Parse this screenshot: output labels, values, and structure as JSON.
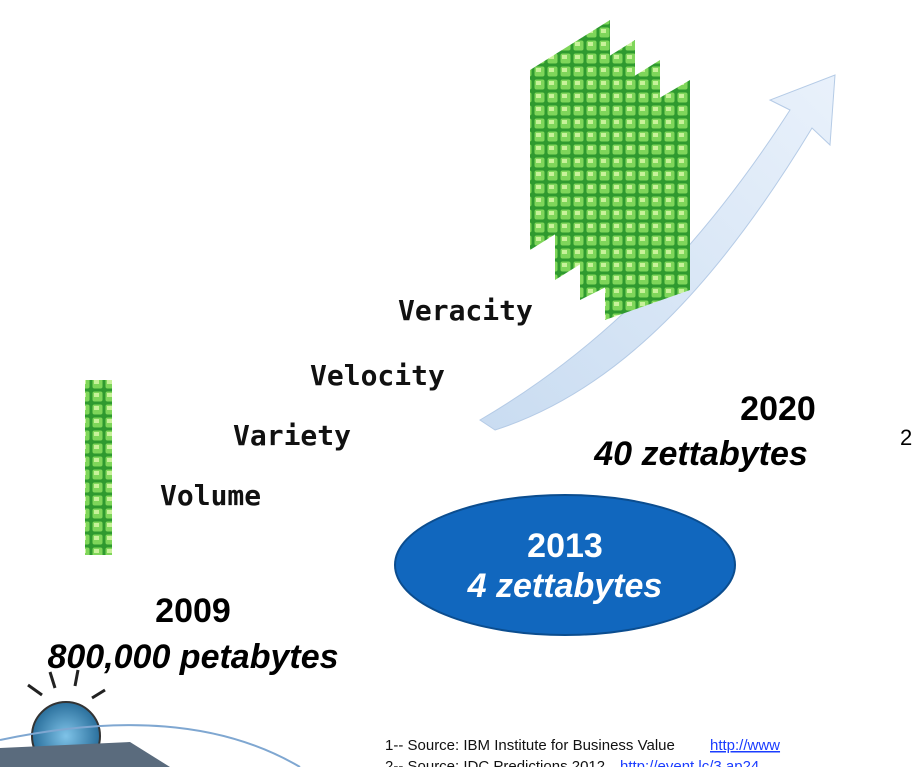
{
  "vs": [
    "Volume",
    "Variety",
    "Velocity",
    "Veracity"
  ],
  "milestones": [
    {
      "year": "2009",
      "amount": "800,000 petabytes"
    },
    {
      "year": "2013",
      "amount": "4 zettabytes"
    },
    {
      "year": "2020",
      "amount": "40 zettabytes",
      "note": "2"
    }
  ],
  "footnotes": [
    {
      "text": "1-- Source: IBM Institute for Business Value",
      "link": "http://www"
    },
    {
      "text": "2-- Source: IDC Predictions 2012",
      "link": "http://event.lc/3.ap24"
    }
  ]
}
